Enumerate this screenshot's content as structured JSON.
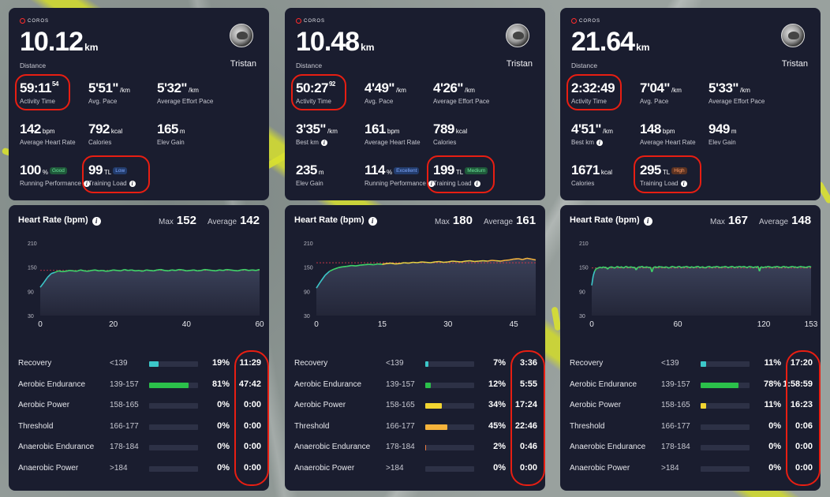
{
  "brand": "COROS",
  "user": "Tristan",
  "colors": {
    "panel": "#1a1d2f",
    "highlight": "#e81e12",
    "recovery": "#3cc7c9",
    "aerobic_endurance": "#2bc04a",
    "aerobic_power": "#f2d531",
    "threshold": "#f5b33b",
    "anaerobic_endurance": "#f07d42",
    "hr_line_green": "#3fd46a",
    "hr_line_yellow": "#e9d244"
  },
  "activities": [
    {
      "distance": "10.12",
      "distance_unit": "km",
      "distance_label": "Distance",
      "stats": [
        {
          "value": "59:11",
          "sup": "54",
          "unit": "",
          "label": "Activity Time",
          "badge": "",
          "info": false
        },
        {
          "value": "5'51\"",
          "sup": "",
          "unit": "/km",
          "label": "Avg. Pace",
          "badge": "",
          "info": false
        },
        {
          "value": "5'32\"",
          "sup": "",
          "unit": "/km",
          "label": "Average Effort Pace",
          "badge": "",
          "info": false
        },
        {
          "value": "142",
          "sup": "",
          "unit": "bpm",
          "label": "Average Heart Rate",
          "badge": "",
          "info": false
        },
        {
          "value": "792",
          "sup": "",
          "unit": "kcal",
          "label": "Calories",
          "badge": "",
          "info": false
        },
        {
          "value": "165",
          "sup": "",
          "unit": "m",
          "label": "Elev Gain",
          "badge": "",
          "info": false
        },
        {
          "value": "100",
          "sup": "",
          "unit": "%",
          "label": "Running Performance",
          "badge": "Good",
          "badge_color": "green",
          "info": true
        },
        {
          "value": "99",
          "sup": "",
          "unit": "TL",
          "label": "Training Load",
          "badge": "Low",
          "badge_color": "blue",
          "info": true
        }
      ],
      "hr": {
        "title": "Heart Rate (bpm)",
        "max_label": "Max",
        "max": "152",
        "avg_label": "Average",
        "avg": "142",
        "y_ticks": [
          "210",
          "150",
          "90",
          "30"
        ],
        "x_ticks": [
          "0",
          "20",
          "40",
          "60"
        ],
        "x_max": 60,
        "series": [
          100,
          112,
          125,
          134,
          137,
          141,
          139,
          140,
          142,
          141,
          140,
          143,
          141,
          140,
          142,
          143,
          141,
          142,
          140,
          141,
          143,
          142,
          141,
          144,
          142,
          143,
          141,
          142,
          140,
          143,
          142,
          141,
          143,
          144,
          142,
          141,
          143,
          142,
          144,
          143,
          141,
          142,
          143,
          141,
          142,
          144,
          143,
          142,
          141,
          143,
          142,
          144,
          143,
          142,
          141,
          143,
          144,
          142,
          143,
          142,
          144
        ],
        "threshold": 142
      },
      "zones": [
        {
          "name": "Recovery",
          "range": "<139",
          "pct": "19%",
          "pct_value": 0.19,
          "time": "11:29",
          "color": "#3cc7c9"
        },
        {
          "name": "Aerobic Endurance",
          "range": "139-157",
          "pct": "81%",
          "pct_value": 0.81,
          "time": "47:42",
          "color": "#2bc04a"
        },
        {
          "name": "Aerobic Power",
          "range": "158-165",
          "pct": "0%",
          "pct_value": 0,
          "time": "0:00",
          "color": "#f2d531"
        },
        {
          "name": "Threshold",
          "range": "166-177",
          "pct": "0%",
          "pct_value": 0,
          "time": "0:00",
          "color": "#f5b33b"
        },
        {
          "name": "Anaerobic Endurance",
          "range": "178-184",
          "pct": "0%",
          "pct_value": 0,
          "time": "0:00",
          "color": "#f07d42"
        },
        {
          "name": "Anaerobic Power",
          "range": ">184",
          "pct": "0%",
          "pct_value": 0,
          "time": "0:00",
          "color": "#e8454a"
        }
      ]
    },
    {
      "distance": "10.48",
      "distance_unit": "km",
      "distance_label": "Distance",
      "stats": [
        {
          "value": "50:27",
          "sup": "92",
          "unit": "",
          "label": "Activity Time",
          "badge": "",
          "info": false
        },
        {
          "value": "4'49\"",
          "sup": "",
          "unit": "/km",
          "label": "Avg. Pace",
          "badge": "",
          "info": false
        },
        {
          "value": "4'26\"",
          "sup": "",
          "unit": "/km",
          "label": "Average Effort Pace",
          "badge": "",
          "info": false
        },
        {
          "value": "3'35\"",
          "sup": "",
          "unit": "/km",
          "label": "Best km",
          "badge": "",
          "info": true
        },
        {
          "value": "161",
          "sup": "",
          "unit": "bpm",
          "label": "Average Heart Rate",
          "badge": "",
          "info": false
        },
        {
          "value": "789",
          "sup": "",
          "unit": "kcal",
          "label": "Calories",
          "badge": "",
          "info": false
        },
        {
          "value": "235",
          "sup": "",
          "unit": "m",
          "label": "Elev Gain",
          "badge": "",
          "info": false
        },
        {
          "value": "114",
          "sup": "",
          "unit": "%",
          "label": "Running Performance",
          "badge": "Excellent",
          "badge_color": "blue",
          "info": true
        },
        {
          "value": "199",
          "sup": "",
          "unit": "TL",
          "label": "Training Load",
          "badge": "Medium",
          "badge_color": "green",
          "info": true
        }
      ],
      "hr": {
        "title": "Heart Rate (bpm)",
        "max_label": "Max",
        "max": "180",
        "avg_label": "Average",
        "avg": "161",
        "y_ticks": [
          "210",
          "150",
          "90",
          "30"
        ],
        "x_ticks": [
          "0",
          "15",
          "30",
          "45"
        ],
        "x_max": 50,
        "series": [
          98,
          115,
          130,
          140,
          145,
          149,
          151,
          152,
          154,
          153,
          155,
          156,
          157,
          156,
          158,
          157,
          159,
          160,
          158,
          159,
          161,
          160,
          162,
          161,
          163,
          162,
          161,
          163,
          164,
          162,
          163,
          165,
          164,
          163,
          165,
          166,
          164,
          165,
          166,
          165,
          167,
          166,
          165,
          167,
          168,
          170,
          171,
          169,
          172,
          170,
          168
        ],
        "threshold": 161
      },
      "zones": [
        {
          "name": "Recovery",
          "range": "<139",
          "pct": "7%",
          "pct_value": 0.07,
          "time": "3:36",
          "color": "#3cc7c9"
        },
        {
          "name": "Aerobic Endurance",
          "range": "139-157",
          "pct": "12%",
          "pct_value": 0.12,
          "time": "5:55",
          "color": "#2bc04a"
        },
        {
          "name": "Aerobic Power",
          "range": "158-165",
          "pct": "34%",
          "pct_value": 0.34,
          "time": "17:24",
          "color": "#f2d531"
        },
        {
          "name": "Threshold",
          "range": "166-177",
          "pct": "45%",
          "pct_value": 0.45,
          "time": "22:46",
          "color": "#f5b33b"
        },
        {
          "name": "Anaerobic Endurance",
          "range": "178-184",
          "pct": "2%",
          "pct_value": 0.02,
          "time": "0:46",
          "color": "#f07d42"
        },
        {
          "name": "Anaerobic Power",
          "range": ">184",
          "pct": "0%",
          "pct_value": 0,
          "time": "0:00",
          "color": "#e8454a"
        }
      ]
    },
    {
      "distance": "21.64",
      "distance_unit": "km",
      "distance_label": "Distance",
      "stats": [
        {
          "value": "2:32:49",
          "sup": "",
          "unit": "",
          "label": "Activity Time",
          "badge": "",
          "info": false
        },
        {
          "value": "7'04\"",
          "sup": "",
          "unit": "/km",
          "label": "Avg. Pace",
          "badge": "",
          "info": false
        },
        {
          "value": "5'33\"",
          "sup": "",
          "unit": "/km",
          "label": "Average Effort Pace",
          "badge": "",
          "info": false
        },
        {
          "value": "4'51\"",
          "sup": "",
          "unit": "/km",
          "label": "Best km",
          "badge": "",
          "info": true
        },
        {
          "value": "148",
          "sup": "",
          "unit": "bpm",
          "label": "Average Heart Rate",
          "badge": "",
          "info": false
        },
        {
          "value": "949",
          "sup": "",
          "unit": "m",
          "label": "Elev Gain",
          "badge": "",
          "info": false
        },
        {
          "value": "1671",
          "sup": "",
          "unit": "kcal",
          "label": "Calories",
          "badge": "",
          "info": false
        },
        {
          "value": "295",
          "sup": "",
          "unit": "TL",
          "label": "Training Load",
          "badge": "High",
          "badge_color": "orange",
          "info": true
        }
      ],
      "hr": {
        "title": "Heart Rate (bpm)",
        "max_label": "Max",
        "max": "167",
        "avg_label": "Average",
        "avg": "148",
        "y_ticks": [
          "210",
          "150",
          "90",
          "30"
        ],
        "x_ticks": [
          "0",
          "60",
          "120",
          "153"
        ],
        "x_max": 153,
        "series": [
          105,
          128,
          140,
          146,
          147,
          149,
          150,
          148,
          151,
          149,
          150,
          145,
          149,
          150,
          151,
          149,
          148,
          150,
          152,
          149,
          150,
          151,
          148,
          150,
          152,
          150,
          149,
          151,
          150,
          149,
          150,
          143,
          149,
          151,
          150,
          152,
          150,
          149,
          151,
          150,
          149,
          150,
          138,
          149,
          151,
          150,
          149,
          152,
          150,
          151,
          149,
          150,
          151,
          149,
          148,
          150,
          152,
          151,
          150,
          149,
          151,
          152,
          150,
          149,
          151,
          150,
          152,
          151,
          149,
          150,
          151,
          149,
          150,
          151,
          152,
          150,
          149,
          151,
          150,
          148,
          150,
          151,
          152,
          150,
          149,
          151,
          150,
          152,
          151,
          150,
          149,
          151,
          150,
          152,
          151,
          149,
          150,
          151,
          152,
          150,
          149,
          151,
          150,
          152,
          151,
          150,
          152,
          151,
          149,
          150,
          152,
          151,
          150,
          149,
          151,
          150,
          152,
          140,
          151,
          150,
          149,
          151,
          150,
          152,
          151,
          150,
          149,
          151,
          150,
          152,
          151,
          150,
          149,
          151,
          152,
          150,
          151,
          149,
          150,
          151,
          152,
          150,
          151,
          149,
          150,
          151,
          152,
          150,
          151,
          149,
          150,
          151,
          152,
          150
        ],
        "threshold": 148
      },
      "zones": [
        {
          "name": "Recovery",
          "range": "<139",
          "pct": "11%",
          "pct_value": 0.11,
          "time": "17:20",
          "color": "#3cc7c9"
        },
        {
          "name": "Aerobic Endurance",
          "range": "139-157",
          "pct": "78%",
          "pct_value": 0.78,
          "time": "1:58:59",
          "color": "#2bc04a"
        },
        {
          "name": "Aerobic Power",
          "range": "158-165",
          "pct": "11%",
          "pct_value": 0.11,
          "time": "16:23",
          "color": "#f2d531"
        },
        {
          "name": "Threshold",
          "range": "166-177",
          "pct": "0%",
          "pct_value": 0,
          "time": "0:06",
          "color": "#f5b33b"
        },
        {
          "name": "Anaerobic Endurance",
          "range": "178-184",
          "pct": "0%",
          "pct_value": 0,
          "time": "0:00",
          "color": "#f07d42"
        },
        {
          "name": "Anaerobic Power",
          "range": ">184",
          "pct": "0%",
          "pct_value": 0,
          "time": "0:00",
          "color": "#e8454a"
        }
      ]
    }
  ]
}
